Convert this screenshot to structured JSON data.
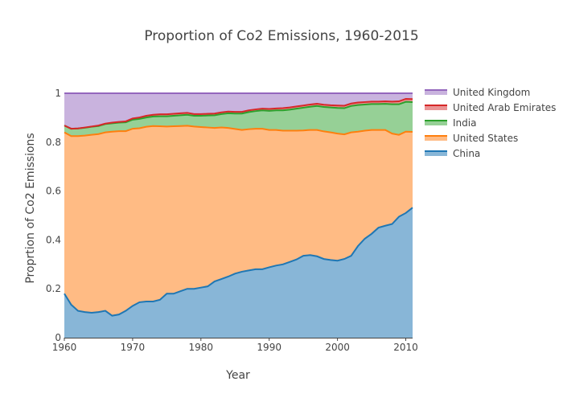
{
  "chart_data": {
    "type": "area",
    "stacked": true,
    "title": "Proportion of Co2 Emissions, 1960-2015",
    "xlabel": "Year",
    "ylabel": "Proprtion of Co2 Emissions",
    "xlim": [
      1960,
      2011
    ],
    "ylim": [
      0,
      1
    ],
    "xticks": [
      1960,
      1970,
      1980,
      1990,
      2000,
      2010
    ],
    "yticks": [
      0,
      0.2,
      0.4,
      0.6,
      0.8,
      1
    ],
    "ytick_labels": [
      "0",
      "0.2",
      "0.4",
      "0.6",
      "0.8",
      "1"
    ],
    "grid": false,
    "legend_position": "right",
    "x": [
      1960,
      1961,
      1962,
      1963,
      1964,
      1965,
      1966,
      1967,
      1968,
      1969,
      1970,
      1971,
      1972,
      1973,
      1974,
      1975,
      1976,
      1977,
      1978,
      1979,
      1980,
      1981,
      1982,
      1983,
      1984,
      1985,
      1986,
      1987,
      1988,
      1989,
      1990,
      1991,
      1992,
      1993,
      1994,
      1995,
      1996,
      1997,
      1998,
      1999,
      2000,
      2001,
      2002,
      2003,
      2004,
      2005,
      2006,
      2007,
      2008,
      2009,
      2010,
      2011
    ],
    "series": [
      {
        "name": "China",
        "line_color": "#1f77b4",
        "fill_color": "#88b6d7",
        "values": [
          0.18,
          0.135,
          0.11,
          0.105,
          0.102,
          0.105,
          0.11,
          0.09,
          0.095,
          0.11,
          0.13,
          0.145,
          0.148,
          0.148,
          0.155,
          0.18,
          0.18,
          0.19,
          0.2,
          0.2,
          0.205,
          0.21,
          0.23,
          0.24,
          0.25,
          0.262,
          0.27,
          0.275,
          0.28,
          0.28,
          0.288,
          0.295,
          0.3,
          0.31,
          0.32,
          0.335,
          0.338,
          0.333,
          0.322,
          0.318,
          0.315,
          0.322,
          0.335,
          0.375,
          0.405,
          0.425,
          0.45,
          0.458,
          0.465,
          0.495,
          0.51,
          0.532
        ]
      },
      {
        "name": "United States",
        "line_color": "#ff7f0e",
        "fill_color": "#ffbb84",
        "values": [
          0.66,
          0.69,
          0.715,
          0.722,
          0.728,
          0.728,
          0.73,
          0.753,
          0.75,
          0.735,
          0.725,
          0.712,
          0.715,
          0.718,
          0.71,
          0.684,
          0.685,
          0.676,
          0.667,
          0.664,
          0.657,
          0.65,
          0.628,
          0.62,
          0.608,
          0.592,
          0.58,
          0.578,
          0.575,
          0.575,
          0.562,
          0.555,
          0.547,
          0.537,
          0.527,
          0.513,
          0.512,
          0.517,
          0.522,
          0.522,
          0.52,
          0.51,
          0.505,
          0.468,
          0.442,
          0.425,
          0.4,
          0.392,
          0.37,
          0.335,
          0.333,
          0.31
        ]
      },
      {
        "name": "India",
        "line_color": "#2ca02c",
        "fill_color": "#96d096",
        "values": [
          0.028,
          0.03,
          0.031,
          0.032,
          0.033,
          0.033,
          0.034,
          0.034,
          0.035,
          0.036,
          0.037,
          0.038,
          0.038,
          0.039,
          0.041,
          0.042,
          0.043,
          0.044,
          0.045,
          0.044,
          0.046,
          0.049,
          0.052,
          0.055,
          0.06,
          0.063,
          0.067,
          0.07,
          0.072,
          0.075,
          0.078,
          0.08,
          0.083,
          0.086,
          0.09,
          0.093,
          0.095,
          0.098,
          0.1,
          0.102,
          0.105,
          0.107,
          0.108,
          0.109,
          0.107,
          0.106,
          0.106,
          0.107,
          0.12,
          0.125,
          0.122,
          0.122
        ]
      },
      {
        "name": "United Arab Emirates",
        "line_color": "#d62728",
        "fill_color": "#ea9394",
        "values": [
          0.0,
          0.0,
          0.0,
          0.001,
          0.001,
          0.002,
          0.002,
          0.003,
          0.003,
          0.004,
          0.005,
          0.006,
          0.007,
          0.007,
          0.008,
          0.008,
          0.008,
          0.008,
          0.008,
          0.007,
          0.007,
          0.007,
          0.007,
          0.007,
          0.007,
          0.007,
          0.007,
          0.007,
          0.007,
          0.007,
          0.008,
          0.008,
          0.009,
          0.009,
          0.009,
          0.009,
          0.009,
          0.009,
          0.009,
          0.009,
          0.01,
          0.01,
          0.01,
          0.01,
          0.01,
          0.01,
          0.01,
          0.01,
          0.011,
          0.012,
          0.012,
          0.012
        ]
      },
      {
        "name": "United Kingdom",
        "line_color": "#9467bd",
        "fill_color": "#c9b3de",
        "values": [
          0.132,
          0.145,
          0.144,
          0.14,
          0.136,
          0.132,
          0.124,
          0.12,
          0.117,
          0.115,
          0.103,
          0.099,
          0.092,
          0.088,
          0.086,
          0.086,
          0.084,
          0.082,
          0.08,
          0.085,
          0.085,
          0.084,
          0.083,
          0.078,
          0.075,
          0.076,
          0.076,
          0.07,
          0.066,
          0.063,
          0.064,
          0.062,
          0.061,
          0.058,
          0.054,
          0.05,
          0.046,
          0.043,
          0.047,
          0.049,
          0.05,
          0.051,
          0.042,
          0.038,
          0.036,
          0.034,
          0.034,
          0.033,
          0.034,
          0.033,
          0.023,
          0.024
        ]
      }
    ]
  }
}
